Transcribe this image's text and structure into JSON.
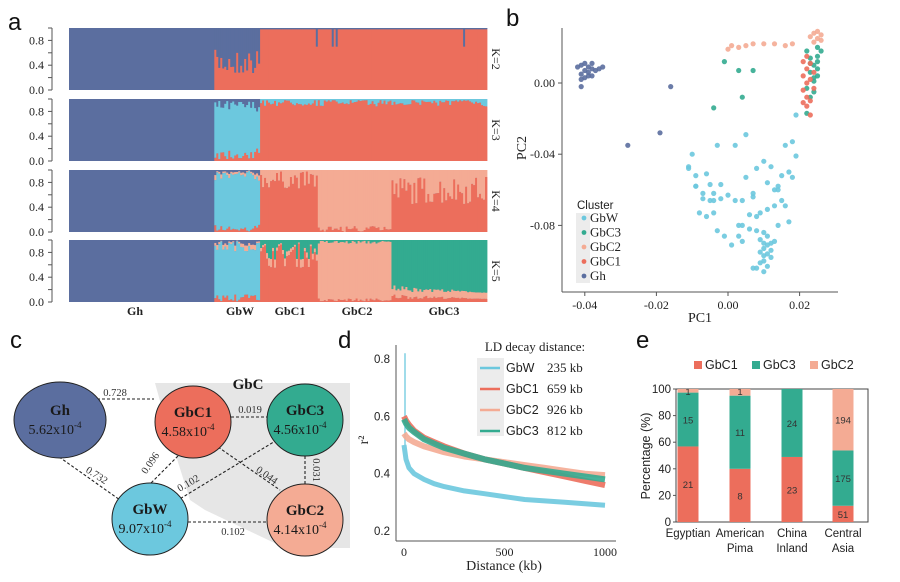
{
  "colors": {
    "Gh": "#5b6e9f",
    "GbW": "#6cc8de",
    "GbC1": "#ec6e5c",
    "GbC2": "#f4ab94",
    "GbC3": "#33ab90",
    "hull": "#e6e6e6"
  },
  "chart_data": [
    {
      "panel": "a",
      "type": "bar",
      "subtype": "stacked-admixture",
      "ylim": [
        0,
        1
      ],
      "yticks": [
        "0.8",
        "0.4",
        "0.0"
      ],
      "rows": [
        {
          "k_label": "K=2",
          "components": [
            "Gh",
            "GbC1"
          ]
        },
        {
          "k_label": "K=3",
          "components": [
            "Gh",
            "GbW",
            "GbC1"
          ]
        },
        {
          "k_label": "K=4",
          "components": [
            "Gh",
            "GbW",
            "GbC1",
            "GbC2"
          ]
        },
        {
          "k_label": "K=5",
          "components": [
            "Gh",
            "GbW",
            "GbC1",
            "GbC2",
            "GbC3"
          ]
        }
      ],
      "groups": [
        {
          "name": "Gh",
          "start": 0.0,
          "end": 0.35
        },
        {
          "name": "GbW",
          "start": 0.35,
          "end": 0.455
        },
        {
          "name": "GbC1",
          "start": 0.455,
          "end": 0.595
        },
        {
          "name": "GbC2",
          "start": 0.595,
          "end": 0.77
        },
        {
          "name": "GbC3",
          "start": 0.77,
          "end": 1.0
        }
      ]
    },
    {
      "panel": "b",
      "type": "scatter",
      "xlabel": "PC1",
      "ylabel": "PC2",
      "xlim": [
        -0.045,
        0.03
      ],
      "ylim": [
        -0.115,
        0.03
      ],
      "xticks": [
        -0.04,
        -0.02,
        0.0,
        0.02
      ],
      "xtick_labels": [
        "-0.04",
        "-0.02",
        "0.00",
        "0.02"
      ],
      "yticks": [
        0.0,
        -0.04,
        -0.08
      ],
      "ytick_labels": [
        "0.00",
        "-0.04",
        "-0.08"
      ],
      "legend_title": "Cluster",
      "legend_position": "bottom-left",
      "legend": [
        "GbW",
        "GbC3",
        "GbC2",
        "GbC1",
        "Gh"
      ],
      "series": [
        {
          "name": "Gh",
          "points": [
            [
              -0.041,
              0.01
            ],
            [
              -0.04,
              0.011
            ],
            [
              -0.039,
              0.009
            ],
            [
              -0.04,
              0.007
            ],
            [
              -0.041,
              0.005
            ],
            [
              -0.039,
              0.006
            ],
            [
              -0.038,
              0.008
            ],
            [
              -0.037,
              0.007
            ],
            [
              -0.038,
              0.011
            ],
            [
              -0.04,
              0.003
            ],
            [
              -0.041,
              0.002
            ],
            [
              -0.039,
              0.004
            ],
            [
              -0.036,
              0.008
            ],
            [
              -0.035,
              0.009
            ],
            [
              -0.041,
              -0.002
            ],
            [
              -0.042,
              0.009
            ],
            [
              -0.038,
              0.004
            ],
            [
              -0.016,
              -0.002
            ],
            [
              -0.019,
              -0.028
            ],
            [
              -0.028,
              -0.035
            ]
          ]
        },
        {
          "name": "GbW",
          "points": [
            [
              0.019,
              -0.018
            ],
            [
              0.005,
              -0.029
            ],
            [
              -0.003,
              -0.035
            ],
            [
              0.002,
              -0.035
            ],
            [
              0.016,
              -0.035
            ],
            [
              0.018,
              -0.033
            ],
            [
              -0.01,
              -0.04
            ],
            [
              -0.011,
              -0.047
            ],
            [
              -0.011,
              -0.048
            ],
            [
              -0.009,
              -0.052
            ],
            [
              -0.006,
              -0.051
            ],
            [
              -0.009,
              -0.058
            ],
            [
              -0.005,
              -0.057
            ],
            [
              -0.007,
              -0.062
            ],
            [
              -0.002,
              -0.057
            ],
            [
              -0.004,
              -0.062
            ],
            [
              -0.007,
              -0.065
            ],
            [
              -0.005,
              -0.066
            ],
            [
              -0.004,
              -0.066
            ],
            [
              -0.002,
              -0.065
            ],
            [
              0.0,
              -0.063
            ],
            [
              0.002,
              -0.066
            ],
            [
              0.004,
              -0.066
            ],
            [
              0.007,
              -0.062
            ],
            [
              0.007,
              -0.064
            ],
            [
              0.008,
              -0.048
            ],
            [
              0.01,
              -0.044
            ],
            [
              0.011,
              -0.056
            ],
            [
              0.013,
              -0.06
            ],
            [
              0.014,
              -0.058
            ],
            [
              0.015,
              -0.052
            ],
            [
              0.017,
              -0.05
            ],
            [
              0.018,
              -0.053
            ],
            [
              0.019,
              -0.041
            ],
            [
              0.012,
              -0.047
            ],
            [
              0.014,
              -0.06
            ],
            [
              0.015,
              -0.066
            ],
            [
              0.013,
              -0.069
            ],
            [
              0.011,
              -0.071
            ],
            [
              0.009,
              -0.073
            ],
            [
              0.008,
              -0.075
            ],
            [
              0.006,
              -0.074
            ],
            [
              0.004,
              -0.08
            ],
            [
              0.003,
              -0.08
            ],
            [
              0.006,
              -0.082
            ],
            [
              0.008,
              -0.083
            ],
            [
              0.01,
              -0.084
            ],
            [
              0.011,
              -0.086
            ],
            [
              0.009,
              -0.088
            ],
            [
              0.01,
              -0.09
            ],
            [
              0.011,
              -0.091
            ],
            [
              0.012,
              -0.09
            ],
            [
              0.013,
              -0.089
            ],
            [
              0.01,
              -0.093
            ],
            [
              0.009,
              -0.095
            ],
            [
              0.01,
              -0.097
            ],
            [
              0.011,
              -0.096
            ],
            [
              0.012,
              -0.094
            ],
            [
              0.01,
              -0.1
            ],
            [
              0.009,
              -0.101
            ],
            [
              0.011,
              -0.103
            ],
            [
              0.008,
              -0.104
            ],
            [
              0.01,
              -0.106
            ],
            [
              0.007,
              -0.104
            ],
            [
              0.004,
              -0.089
            ],
            [
              0.003,
              -0.086
            ],
            [
              0.001,
              -0.091
            ],
            [
              -0.001,
              -0.086
            ],
            [
              -0.003,
              -0.083
            ],
            [
              -0.004,
              -0.073
            ],
            [
              -0.006,
              -0.075
            ],
            [
              -0.008,
              -0.073
            ],
            [
              -0.009,
              -0.058
            ],
            [
              0.014,
              -0.08
            ],
            [
              0.017,
              -0.078
            ],
            [
              0.016,
              -0.069
            ],
            [
              0.005,
              -0.053
            ],
            [
              0.012,
              -0.098
            ]
          ]
        },
        {
          "name": "GbC3",
          "points": [
            [
              -0.001,
              0.012
            ],
            [
              0.003,
              0.007
            ],
            [
              0.007,
              0.007
            ],
            [
              -0.004,
              -0.014
            ],
            [
              0.004,
              -0.008
            ],
            [
              0.022,
              0.018
            ],
            [
              0.023,
              0.014
            ],
            [
              0.024,
              0.01
            ],
            [
              0.023,
              0.006
            ],
            [
              0.024,
              0.003
            ],
            [
              0.025,
              0.015
            ],
            [
              0.025,
              0.008
            ],
            [
              0.024,
              0.001
            ],
            [
              0.022,
              -0.003
            ],
            [
              0.023,
              -0.008
            ],
            [
              0.024,
              -0.005
            ],
            [
              0.025,
              0.012
            ],
            [
              0.026,
              0.018
            ],
            [
              0.023,
              0.011
            ],
            [
              0.025,
              0.004
            ],
            [
              0.022,
              -0.017
            ],
            [
              0.025,
              0.02
            ]
          ]
        },
        {
          "name": "GbC2",
          "points": [
            [
              0.0,
              0.019
            ],
            [
              0.001,
              0.021
            ],
            [
              0.003,
              0.02
            ],
            [
              0.005,
              0.021
            ],
            [
              0.007,
              0.022
            ],
            [
              0.01,
              0.022
            ],
            [
              0.013,
              0.022
            ],
            [
              0.016,
              0.021
            ],
            [
              0.018,
              0.022
            ],
            [
              0.023,
              0.026
            ],
            [
              0.024,
              0.028
            ],
            [
              0.025,
              0.025
            ],
            [
              0.026,
              0.027
            ],
            [
              0.024,
              0.023
            ],
            [
              0.025,
              0.029
            ],
            [
              0.026,
              0.024
            ]
          ]
        },
        {
          "name": "GbC1",
          "points": [
            [
              0.021,
              0.012
            ],
            [
              0.022,
              0.008
            ],
            [
              0.021,
              0.004
            ],
            [
              0.022,
              0.0
            ],
            [
              0.021,
              -0.004
            ],
            [
              0.022,
              -0.008
            ],
            [
              0.021,
              -0.011
            ],
            [
              0.022,
              -0.013
            ],
            [
              0.023,
              -0.01
            ],
            [
              0.023,
              0.011
            ],
            [
              0.024,
              0.006
            ],
            [
              0.023,
              0.002
            ],
            [
              0.022,
              0.015
            ],
            [
              0.024,
              -0.003
            ],
            [
              0.023,
              -0.018
            ]
          ]
        }
      ]
    },
    {
      "panel": "c",
      "type": "diagram",
      "group_label": "GbC",
      "nodes": [
        {
          "id": "Gh",
          "name": "Gh",
          "value": "5.62x10",
          "exp": "-4"
        },
        {
          "id": "GbC1",
          "name": "GbC1",
          "value": "4.58x10",
          "exp": "-4"
        },
        {
          "id": "GbC3",
          "name": "GbC3",
          "value": "4.56x10",
          "exp": "-4"
        },
        {
          "id": "GbW",
          "name": "GbW",
          "value": "9.07x10",
          "exp": "-4"
        },
        {
          "id": "GbC2",
          "name": "GbC2",
          "value": "4.14x10",
          "exp": "-4"
        }
      ],
      "edges": [
        {
          "from": "Gh",
          "to": "GbC1",
          "label": "0.728"
        },
        {
          "from": "Gh",
          "to": "GbW",
          "label": "0.732"
        },
        {
          "from": "GbC1",
          "to": "GbC3",
          "label": "0.019"
        },
        {
          "from": "GbC1",
          "to": "GbW",
          "label": "0.096"
        },
        {
          "from": "GbC3",
          "to": "GbW",
          "label": "0.102"
        },
        {
          "from": "GbC1",
          "to": "GbC2",
          "label": "0.044"
        },
        {
          "from": "GbC3",
          "to": "GbC2",
          "label": "0.031"
        },
        {
          "from": "GbW",
          "to": "GbC2",
          "label": "0.102"
        }
      ]
    },
    {
      "panel": "d",
      "type": "line",
      "xlabel": "Distance (kb)",
      "ylabel": "r²",
      "xlim": [
        0,
        1000
      ],
      "ylim": [
        0.2,
        0.8
      ],
      "xticks": [
        0,
        500,
        1000
      ],
      "xtick_labels": [
        "0",
        "500",
        "1000"
      ],
      "yticks": [
        0.8,
        0.6,
        0.4,
        0.2
      ],
      "ytick_labels": [
        "0.8",
        "0.6",
        "0.4",
        "0.2"
      ],
      "legend_title": "LD decay distance:",
      "legend_position": "top-right",
      "series": [
        {
          "name": "GbW",
          "decay": "235 kb",
          "x": [
            0,
            10,
            25,
            50,
            100,
            150,
            200,
            300,
            400,
            500,
            600,
            700,
            800,
            900,
            1000
          ],
          "y": [
            0.5,
            0.45,
            0.42,
            0.4,
            0.38,
            0.365,
            0.355,
            0.34,
            0.33,
            0.32,
            0.31,
            0.305,
            0.3,
            0.295,
            0.29
          ]
        },
        {
          "name": "GbC1",
          "decay": "659 kb",
          "x": [
            0,
            10,
            25,
            50,
            100,
            150,
            200,
            300,
            400,
            500,
            600,
            700,
            800,
            900,
            1000
          ],
          "y": [
            0.6,
            0.585,
            0.57,
            0.55,
            0.525,
            0.51,
            0.495,
            0.47,
            0.45,
            0.435,
            0.42,
            0.405,
            0.39,
            0.375,
            0.36
          ]
        },
        {
          "name": "GbC2",
          "decay": "926 kb",
          "x": [
            0,
            10,
            25,
            50,
            100,
            150,
            200,
            300,
            400,
            500,
            600,
            700,
            800,
            900,
            1000
          ],
          "y": [
            0.54,
            0.53,
            0.52,
            0.51,
            0.495,
            0.485,
            0.475,
            0.46,
            0.45,
            0.44,
            0.43,
            0.42,
            0.41,
            0.4,
            0.395
          ]
        },
        {
          "name": "GbC3",
          "decay": "812 kb",
          "x": [
            0,
            10,
            25,
            50,
            100,
            150,
            200,
            300,
            400,
            500,
            600,
            700,
            800,
            900,
            1000
          ],
          "y": [
            0.59,
            0.575,
            0.56,
            0.545,
            0.52,
            0.505,
            0.49,
            0.47,
            0.45,
            0.435,
            0.42,
            0.41,
            0.4,
            0.39,
            0.38
          ]
        }
      ]
    },
    {
      "panel": "e",
      "type": "bar",
      "subtype": "stacked-percent",
      "ylabel": "Percentage (%)",
      "ylim": [
        0,
        100
      ],
      "yticks": [
        0,
        20,
        40,
        60,
        80,
        100
      ],
      "ytick_labels": [
        "0",
        "20",
        "40",
        "60",
        "80",
        "100"
      ],
      "legend_position": "top",
      "categories": [
        [
          "Egyptian"
        ],
        [
          "American",
          "Pima"
        ],
        [
          "China",
          "Inland"
        ],
        [
          "Central",
          "Asia"
        ]
      ],
      "series": [
        {
          "name": "GbC1",
          "counts": [
            21,
            8,
            23,
            51
          ],
          "values": [
            56.8,
            40.0,
            48.9,
            12.2
          ]
        },
        {
          "name": "GbC3",
          "counts": [
            15,
            11,
            24,
            175
          ],
          "values": [
            40.5,
            55.0,
            51.1,
            41.6
          ]
        },
        {
          "name": "GbC2",
          "counts": [
            1,
            1,
            0,
            194
          ],
          "values": [
            2.7,
            5.0,
            0,
            46.2
          ]
        }
      ],
      "legend": [
        "GbC1",
        "GbC3",
        "GbC2"
      ]
    }
  ],
  "panel_labels": {
    "a": "a",
    "b": "b",
    "c": "c",
    "d": "d",
    "e": "e"
  }
}
